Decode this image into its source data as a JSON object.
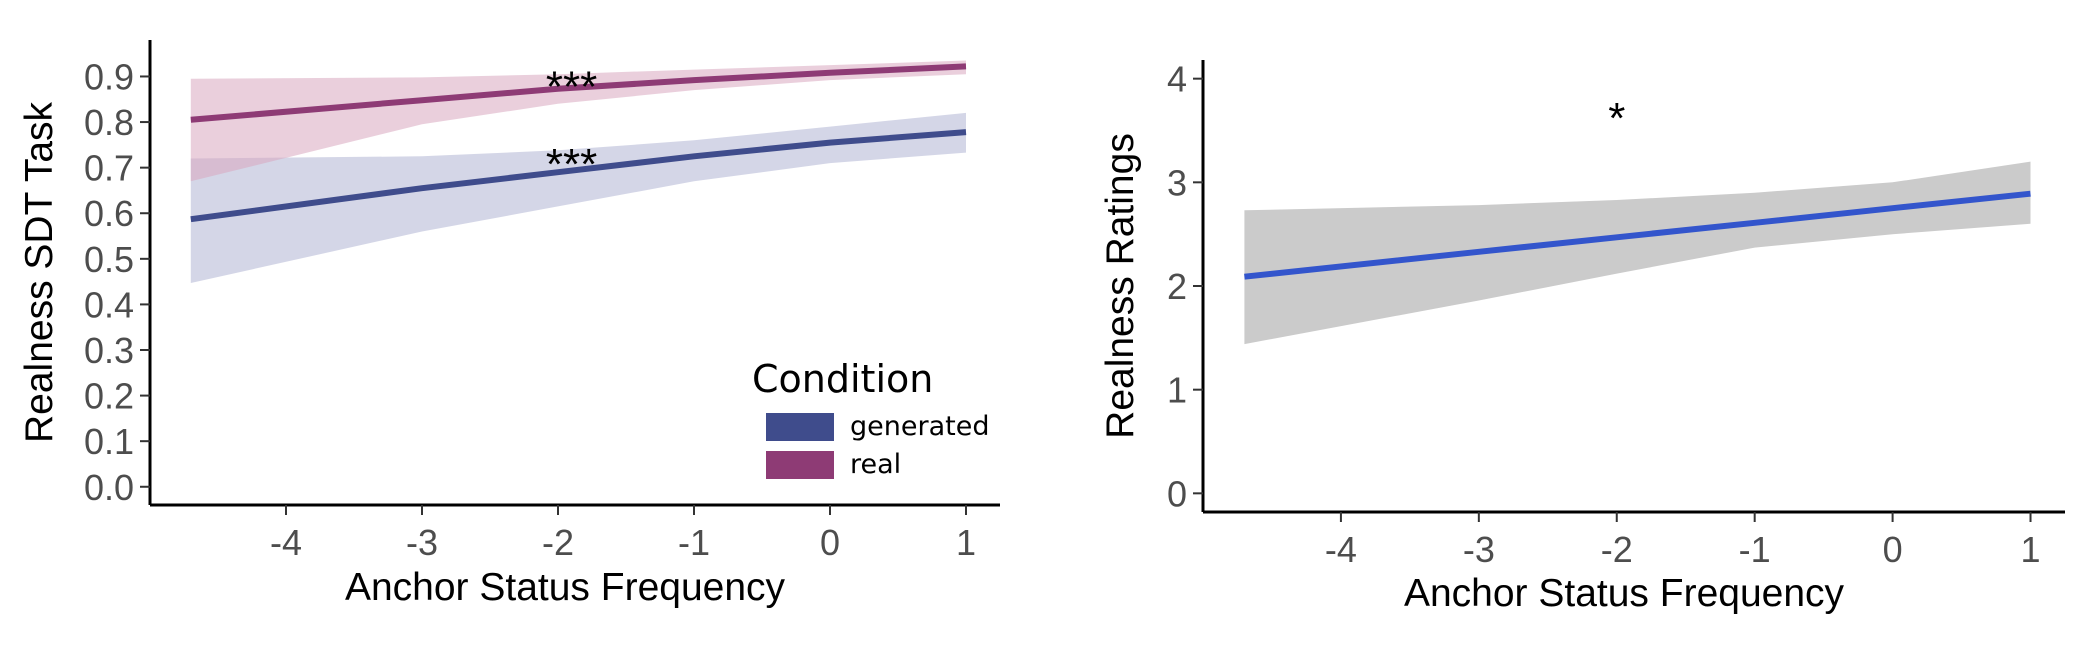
{
  "chart_data": [
    {
      "type": "line",
      "title": "",
      "xlabel": "Anchor Status Frequency",
      "ylabel": "Realness SDT Task",
      "xlim": [
        -5,
        1.25
      ],
      "ylim": [
        -0.04,
        0.98
      ],
      "x_ticks": [
        -4,
        -3,
        -2,
        -1,
        0,
        1
      ],
      "y_ticks": [
        0.0,
        0.1,
        0.2,
        0.3,
        0.4,
        0.5,
        0.6,
        0.7,
        0.8,
        0.9
      ],
      "x_tick_labels": [
        "-4",
        "-3",
        "-2",
        "-1",
        "0",
        "1"
      ],
      "y_tick_labels": [
        "0.0",
        "0.1",
        "0.2",
        "0.3",
        "0.4",
        "0.5",
        "0.6",
        "0.7",
        "0.8",
        "0.9"
      ],
      "grid": false,
      "legend": {
        "title": "Condition",
        "position": "bottom-right",
        "entries": [
          {
            "label": "generated",
            "color": "#3f4c8c"
          },
          {
            "label": "real",
            "color": "#8e3b75"
          }
        ]
      },
      "series": [
        {
          "name": "generated",
          "color": "#3f4c8c",
          "band_color": "#b0b4d4",
          "x": [
            -4.7,
            -3,
            -2,
            -1,
            0,
            1
          ],
          "y": [
            0.587,
            0.655,
            0.69,
            0.725,
            0.755,
            0.778
          ],
          "lower": [
            0.447,
            0.56,
            0.615,
            0.67,
            0.71,
            0.733
          ],
          "upper": [
            0.72,
            0.725,
            0.738,
            0.76,
            0.79,
            0.82
          ]
        },
        {
          "name": "real",
          "color": "#8e3b75",
          "band_color": "#d8a7bf",
          "x": [
            -4.7,
            -3,
            -2,
            -1,
            0,
            1
          ],
          "y": [
            0.805,
            0.848,
            0.873,
            0.892,
            0.908,
            0.922
          ],
          "lower": [
            0.67,
            0.795,
            0.84,
            0.87,
            0.892,
            0.905
          ],
          "upper": [
            0.895,
            0.898,
            0.905,
            0.915,
            0.925,
            0.935
          ]
        }
      ],
      "annotations": [
        {
          "text": "***",
          "x": -1.9,
          "y": 0.885
        },
        {
          "text": "***",
          "x": -1.9,
          "y": 0.715
        }
      ]
    },
    {
      "type": "line",
      "title": "",
      "xlabel": "Anchor Status Frequency",
      "ylabel": "Realness Ratings",
      "xlim": [
        -5,
        1.25
      ],
      "ylim": [
        -0.18,
        4.18
      ],
      "x_ticks": [
        -4,
        -3,
        -2,
        -1,
        0,
        1
      ],
      "y_ticks": [
        0,
        1,
        2,
        3,
        4
      ],
      "x_tick_labels": [
        "-4",
        "-3",
        "-2",
        "-1",
        "0",
        "1"
      ],
      "y_tick_labels": [
        "0",
        "1",
        "2",
        "3",
        "4"
      ],
      "grid": false,
      "series": [
        {
          "color": "#3355cc",
          "band_color": "#cbcbcb",
          "x": [
            -4.7,
            -3,
            -2,
            -1,
            0,
            1
          ],
          "y": [
            2.09,
            2.33,
            2.47,
            2.61,
            2.75,
            2.89
          ],
          "lower": [
            1.44,
            1.86,
            2.12,
            2.37,
            2.5,
            2.6
          ],
          "upper": [
            2.73,
            2.78,
            2.83,
            2.9,
            3.0,
            3.2
          ]
        }
      ],
      "annotations": [
        {
          "text": "*",
          "x": -2.0,
          "y": 3.65
        }
      ]
    }
  ]
}
